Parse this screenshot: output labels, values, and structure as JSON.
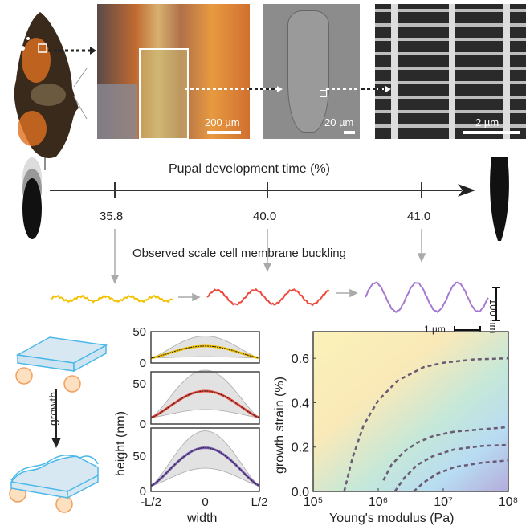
{
  "micrographs": {
    "scale_1": "200 µm",
    "scale_2": "20 µm",
    "scale_3": "2 µm"
  },
  "timeline": {
    "title": "Pupal development time (%)",
    "ticks": [
      "35.8",
      "40.0",
      "41.0"
    ],
    "subtitle": "Observed scale cell membrane buckling",
    "scale_vertical": "100 nm",
    "scale_horizontal": "1 µm",
    "wave_colors": [
      "#f2c200",
      "#ee4a3c",
      "#a57ad0"
    ]
  },
  "schematic": {
    "arrow_label": "growth"
  },
  "chart_data": [
    {
      "type": "line",
      "panels": 3,
      "ylabel": "height (nm)",
      "xlabel": "width",
      "x_tick_labels": [
        "-L/2",
        "0",
        "L/2"
      ],
      "y_tick_labels": [
        [
          "0",
          "50"
        ],
        [
          "0",
          "50"
        ],
        [
          "0",
          "50"
        ]
      ],
      "ylim": [
        [
          0,
          50
        ],
        [
          0,
          65
        ],
        [
          0,
          90
        ]
      ],
      "peak_heights": [
        27,
        41,
        62
      ],
      "band_upper_peaks": [
        43,
        67,
        86
      ],
      "band_lower_peaks": [
        10,
        18,
        33
      ],
      "edge_height": 8,
      "colors": [
        "#f2c200",
        "#ee4a3c",
        "#7b5cb8"
      ]
    },
    {
      "type": "line",
      "xlabel": "Young's modulus (Pa)",
      "ylabel": "growth strain (%)",
      "x_scale": "log",
      "xlim": [
        100000,
        100000000
      ],
      "ylim": [
        0,
        0.72
      ],
      "x_tick_labels": [
        "10⁵",
        "10⁶",
        "10⁷",
        "10⁸"
      ],
      "y_ticks": [
        0.0,
        0.2,
        0.4,
        0.6
      ],
      "y_tick_labels": [
        "0.0",
        "0.2",
        "0.4",
        "0.6"
      ],
      "series": [
        {
          "x": [
            300000,
            400000,
            600000,
            1000000,
            2000000,
            5000000,
            10000000,
            30000000,
            100000000
          ],
          "y": [
            0.0,
            0.15,
            0.3,
            0.41,
            0.5,
            0.56,
            0.58,
            0.595,
            0.6
          ]
        },
        {
          "x": [
            1200000,
            1600000,
            2500000,
            4000000,
            7000000,
            15000000,
            40000000,
            100000000
          ],
          "y": [
            0.05,
            0.12,
            0.18,
            0.22,
            0.25,
            0.27,
            0.28,
            0.29
          ]
        },
        {
          "x": [
            1800000,
            2500000,
            4000000,
            7000000,
            15000000,
            40000000,
            100000000
          ],
          "y": [
            0.0,
            0.06,
            0.12,
            0.16,
            0.19,
            0.205,
            0.21
          ]
        },
        {
          "x": [
            3500000,
            5000000,
            8000000,
            15000000,
            40000000,
            100000000
          ],
          "y": [
            0.0,
            0.04,
            0.08,
            0.11,
            0.13,
            0.14
          ]
        }
      ],
      "curve_color": "#6a5a72",
      "background_gradient": [
        "#faf2b8",
        "#fae6b8",
        "#bfe6d8",
        "#b8dcf2",
        "#b8b0e0"
      ]
    }
  ]
}
